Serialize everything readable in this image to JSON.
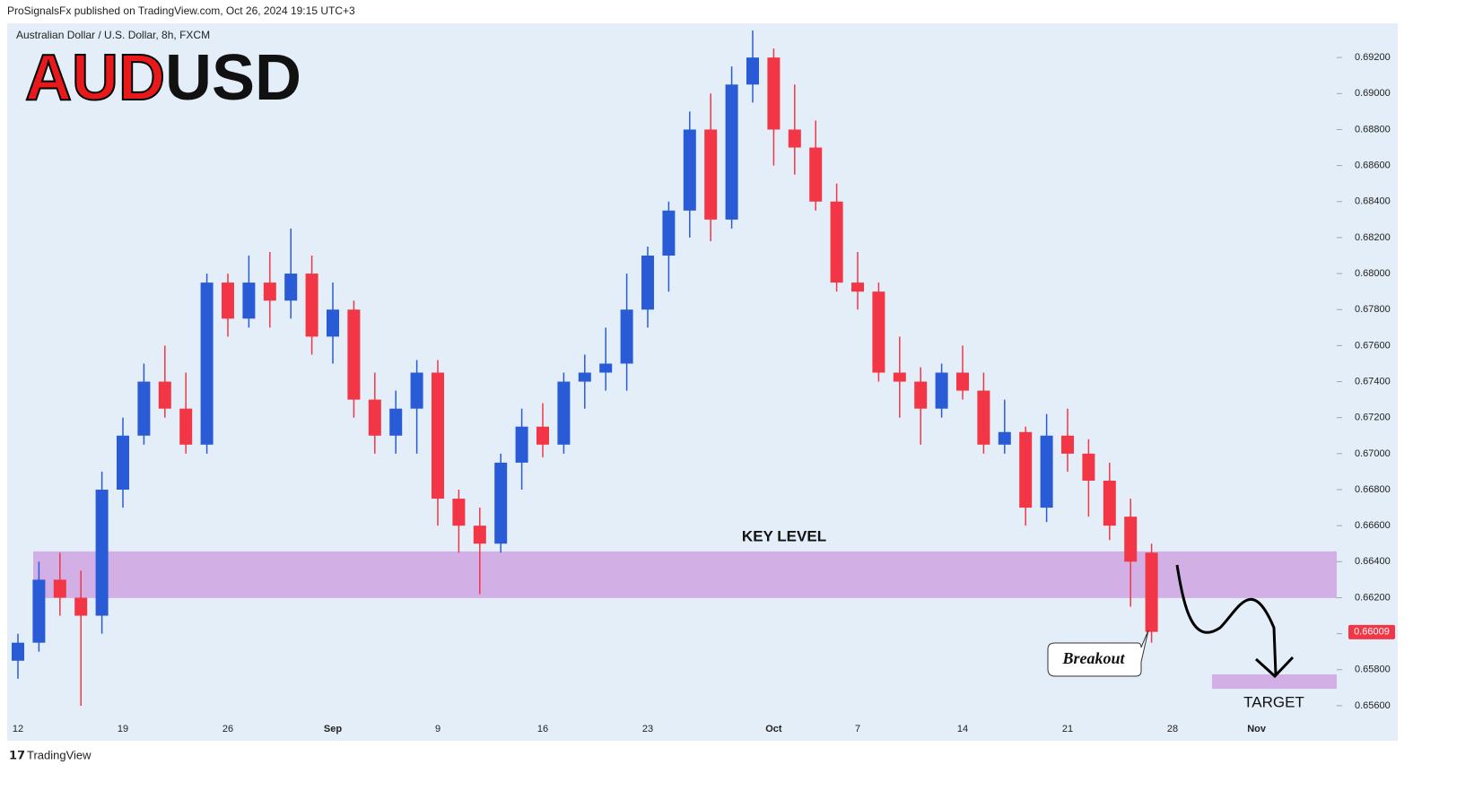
{
  "header": "ProSignalsFx published on TradingView.com, Oct 26, 2024 19:15 UTC+3",
  "footer": "TradingView",
  "chart_data": {
    "type": "candlestick",
    "title_parts": [
      "AUD",
      "USD"
    ],
    "subtitle": "Australian Dollar / U.S. Dollar, 8h, FXCM",
    "up_color": "#2a5bd7",
    "down_color": "#f23645",
    "categories": [
      "12",
      null,
      null,
      null,
      null,
      "19",
      null,
      null,
      null,
      null,
      "26",
      null,
      null,
      null,
      null,
      "Sep",
      null,
      null,
      null,
      null,
      "9",
      null,
      null,
      null,
      null,
      "16",
      null,
      null,
      null,
      null,
      "23",
      null,
      null,
      null,
      null,
      null,
      "Oct",
      null,
      null,
      null,
      "7",
      null,
      null,
      null,
      null,
      "14",
      null,
      null,
      null,
      null,
      "21",
      null,
      null,
      null,
      null,
      "28",
      null,
      null,
      null,
      "Nov",
      null,
      null,
      null
    ],
    "open": [
      0.6585,
      0.6595,
      0.663,
      0.662,
      0.661,
      0.668,
      0.671,
      0.674,
      0.6725,
      0.6705,
      0.6795,
      0.6775,
      0.6795,
      0.6785,
      0.68,
      0.6765,
      0.678,
      0.673,
      0.671,
      0.6725,
      0.6745,
      0.6675,
      0.666,
      0.665,
      0.6695,
      0.6715,
      0.6705,
      0.674,
      0.6745,
      0.675,
      0.678,
      0.681,
      0.6835,
      0.688,
      0.683,
      0.6905,
      0.692,
      0.688,
      0.687,
      0.684,
      0.6795,
      0.679,
      0.6745,
      0.674,
      0.6725,
      0.6745,
      0.6735,
      0.6705,
      0.6712,
      0.667,
      0.671,
      0.67,
      0.6685,
      0.6665,
      0.6645,
      null,
      null,
      null,
      null,
      null,
      null,
      null,
      null
    ],
    "high": [
      0.66,
      0.664,
      0.6645,
      0.6635,
      0.669,
      0.672,
      0.675,
      0.676,
      0.6745,
      0.68,
      0.68,
      0.681,
      0.6812,
      0.6825,
      0.681,
      0.6795,
      0.6785,
      0.6745,
      0.6735,
      0.6752,
      0.6752,
      0.668,
      0.667,
      0.67,
      0.6725,
      0.6728,
      0.6745,
      0.6755,
      0.677,
      0.68,
      0.6815,
      0.684,
      0.689,
      0.69,
      0.6915,
      0.6935,
      0.6925,
      0.6905,
      0.6885,
      0.685,
      0.6812,
      0.6795,
      0.6765,
      0.6748,
      0.675,
      0.676,
      0.6745,
      0.673,
      0.6715,
      0.6722,
      0.6725,
      0.6708,
      0.6695,
      0.6675,
      0.665,
      null,
      null,
      null,
      null,
      null,
      null,
      null,
      null
    ],
    "low": [
      0.6575,
      0.659,
      0.661,
      0.656,
      0.66,
      0.667,
      0.6705,
      0.672,
      0.67,
      0.67,
      0.6765,
      0.677,
      0.677,
      0.6775,
      0.6755,
      0.675,
      0.672,
      0.67,
      0.67,
      0.67,
      0.666,
      0.6645,
      0.6622,
      0.6645,
      0.668,
      0.6698,
      0.67,
      0.6725,
      0.6735,
      0.6735,
      0.677,
      0.679,
      0.682,
      0.6818,
      0.6825,
      0.6895,
      0.686,
      0.6855,
      0.6835,
      0.679,
      0.678,
      0.674,
      0.672,
      0.6705,
      0.672,
      0.673,
      0.67,
      0.67,
      0.666,
      0.6662,
      0.669,
      0.6665,
      0.6652,
      0.6615,
      0.6595,
      null,
      null,
      null,
      null,
      null,
      null,
      null,
      null
    ],
    "close": [
      0.6595,
      0.663,
      0.662,
      0.661,
      0.668,
      0.671,
      0.674,
      0.6725,
      0.6705,
      0.6795,
      0.6775,
      0.6795,
      0.6785,
      0.68,
      0.6765,
      0.678,
      0.673,
      0.671,
      0.6725,
      0.6745,
      0.6675,
      0.666,
      0.665,
      0.6695,
      0.6715,
      0.6705,
      0.674,
      0.6745,
      0.675,
      0.678,
      0.681,
      0.6835,
      0.688,
      0.683,
      0.6905,
      0.692,
      0.688,
      0.687,
      0.684,
      0.6795,
      0.679,
      0.6745,
      0.674,
      0.6725,
      0.6745,
      0.6735,
      0.6705,
      0.6712,
      0.667,
      0.671,
      0.67,
      0.6685,
      0.666,
      0.664,
      0.6601,
      null,
      null,
      null,
      null,
      null,
      null,
      null,
      null
    ],
    "last_price": {
      "value": 0.66009,
      "label": "0.66009"
    },
    "ylim": [
      0.6553,
      0.6939
    ],
    "yticks": [
      {
        "value": 0.656,
        "label": "0.65600"
      },
      {
        "value": 0.658,
        "label": "0.65800"
      },
      {
        "value": 0.66,
        "label": "0.66000"
      },
      {
        "value": 0.662,
        "label": "0.66200"
      },
      {
        "value": 0.664,
        "label": "0.66400"
      },
      {
        "value": 0.666,
        "label": "0.66600"
      },
      {
        "value": 0.668,
        "label": "0.66800"
      },
      {
        "value": 0.67,
        "label": "0.67000"
      },
      {
        "value": 0.672,
        "label": "0.67200"
      },
      {
        "value": 0.674,
        "label": "0.67400"
      },
      {
        "value": 0.676,
        "label": "0.67600"
      },
      {
        "value": 0.678,
        "label": "0.67800"
      },
      {
        "value": 0.68,
        "label": "0.68000"
      },
      {
        "value": 0.682,
        "label": "0.68200"
      },
      {
        "value": 0.684,
        "label": "0.68400"
      },
      {
        "value": 0.686,
        "label": "0.68600"
      },
      {
        "value": 0.688,
        "label": "0.68800"
      },
      {
        "value": 0.69,
        "label": "0.69000"
      },
      {
        "value": 0.692,
        "label": "0.69200"
      }
    ],
    "zones": [
      {
        "label": "KEY LEVEL",
        "top": 0.66457,
        "bottom": 0.66198,
        "color": "#cfa9e3"
      },
      {
        "label": "TARGET",
        "top": 0.65774,
        "bottom": 0.65694,
        "color": "#cfa9e3"
      }
    ],
    "annotation": "Breakout"
  }
}
